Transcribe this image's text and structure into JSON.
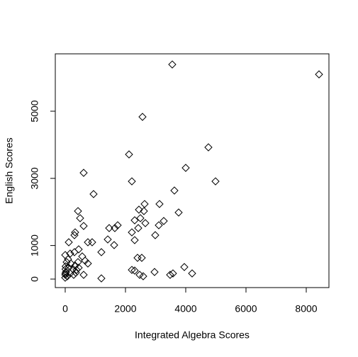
{
  "chart_data": {
    "type": "scatter",
    "x_label": "Integrated Algebra Scores",
    "y_label": "English Scores",
    "marker": "diamond",
    "color": "#000000",
    "xlim": [
      -329,
      8753
    ],
    "ylim": [
      -253,
      6709
    ],
    "xticks": [
      0,
      2000,
      4000,
      6000,
      8000
    ],
    "yticks": [
      0,
      1000,
      3000,
      5000
    ],
    "x": [
      3553,
      8424,
      2565,
      2118,
      4753,
      4000,
      4988,
      2212,
      3624,
      612,
      941,
      424,
      2635,
      2447,
      3129,
      3765,
      2612,
      494,
      612,
      2306,
      2494,
      2659,
      3271,
      3106,
      1459,
      1647,
      1741,
      329,
      306,
      2424,
      2212,
      2988,
      1412,
      2306,
      753,
      894,
      118,
      1624,
      447,
      1200,
      306,
      2400,
      2541,
      0,
      165,
      659,
      565,
      753,
      3953,
      2212,
      2306,
      2965,
      4212,
      3482,
      3576,
      2471,
      2588,
      1200,
      612,
      353,
      10,
      24,
      5,
      71,
      15,
      118,
      188,
      259,
      329,
      376,
      447,
      47,
      8,
      165,
      0,
      282,
      94,
      424
    ],
    "values": [
      6392,
      6097,
      4831,
      3713,
      3924,
      3312,
      2911,
      2911,
      2637,
      3165,
      2532,
      2025,
      2236,
      2068,
      2236,
      1983,
      2025,
      1814,
      1582,
      1751,
      1814,
      1667,
      1730,
      1603,
      1519,
      1519,
      1603,
      1392,
      1308,
      1519,
      1392,
      1308,
      1181,
      1160,
      1097,
      1097,
      1097,
      1013,
      886,
      802,
      802,
      633,
      633,
      717,
      760,
      549,
      675,
      464,
      359,
      274,
      253,
      211,
      169,
      127,
      169,
      127,
      84,
      21,
      127,
      190,
      295,
      211,
      127,
      84,
      380,
      338,
      464,
      295,
      401,
      274,
      338,
      506,
      169,
      169,
      42,
      127,
      591,
      506
    ]
  }
}
